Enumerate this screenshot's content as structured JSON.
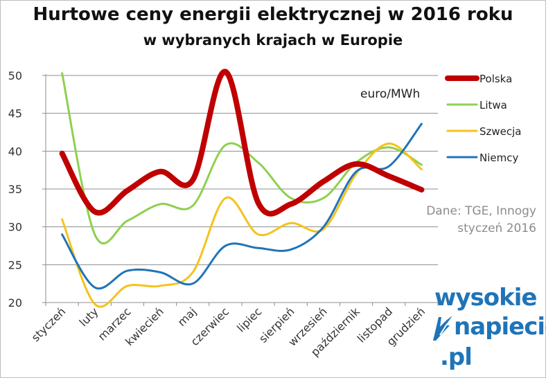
{
  "header": {
    "title": "Hurtowe ceny energii elektrycznej w 2016 roku",
    "subtitle": "w wybranych krajach w Europie"
  },
  "unit_label": "euro/MWh",
  "source": {
    "line1": "Dane: TGE, Innogy",
    "line2": "styczeń 2016"
  },
  "logo": {
    "line1": "wysokie",
    "line2": "napiecie",
    "line3": ".pl",
    "color": "#1f74b8"
  },
  "chart_data": {
    "type": "line",
    "title": "Hurtowe ceny energii elektrycznej w 2016 roku",
    "subtitle": "w wybranych krajach w Europie",
    "xlabel": "",
    "ylabel": "euro/MWh",
    "categories": [
      "styczeń",
      "luty",
      "marzec",
      "kwiecień",
      "maj",
      "czerwiec",
      "lipiec",
      "sierpień",
      "wrzesień",
      "październik",
      "listopad",
      "grudzień"
    ],
    "ylim": [
      20,
      50
    ],
    "yticks": [
      20,
      25,
      30,
      35,
      40,
      45,
      50
    ],
    "grid": "horizontal",
    "legend_position": "right",
    "series": [
      {
        "name": "Polska",
        "color": "#c00000",
        "values": [
          39.7,
          32.0,
          34.8,
          37.3,
          36.2,
          50.5,
          33.2,
          33.0,
          36.0,
          38.3,
          36.7,
          34.9
        ]
      },
      {
        "name": "Litwa",
        "color": "#8ed04e",
        "values": [
          50.3,
          29.0,
          30.8,
          33.0,
          32.8,
          40.8,
          38.5,
          33.8,
          33.8,
          38.5,
          40.5,
          38.2
        ]
      },
      {
        "name": "Szwecja",
        "color": "#f5c21b",
        "values": [
          31.0,
          19.8,
          22.2,
          22.2,
          24.0,
          33.8,
          29.0,
          30.5,
          29.7,
          37.0,
          41.0,
          37.6
        ]
      },
      {
        "name": "Niemcy",
        "color": "#1f74b8",
        "values": [
          29.0,
          22.0,
          24.2,
          24.0,
          22.5,
          27.5,
          27.2,
          27.0,
          30.0,
          37.3,
          38.0,
          43.6
        ]
      }
    ]
  }
}
